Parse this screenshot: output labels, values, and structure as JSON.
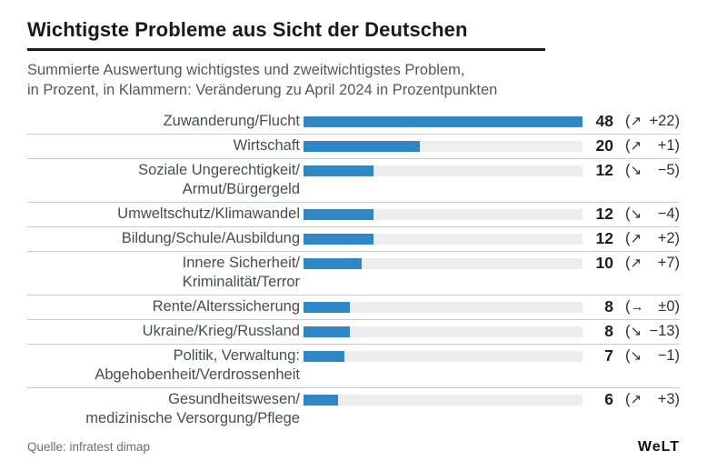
{
  "chart_data": {
    "type": "bar",
    "orientation": "horizontal",
    "title": "Wichtigste Probleme aus Sicht der Deutschen",
    "subtitle_line1": "Summierte Auswertung wichtigstes und zweitwichtigstes Problem,",
    "subtitle_line2": "in Prozent, in Klammern: Veränderung zu April 2024 in Prozentpunkten",
    "source": "Quelle: infratest dimap",
    "unit": "Prozent",
    "value_axis_max": 48,
    "grid": false,
    "legend": false,
    "bar_color": "#3087c6",
    "track_color": "#ededed",
    "categories": [
      "Zuwanderung/Flucht",
      "Wirtschaft",
      "Soziale Ungerechtigkeit/Armut/Bürgergeld",
      "Umweltschutz/Klimawandel",
      "Bildung/Schule/Ausbildung",
      "Innere Sicherheit/Kriminalität/Terror",
      "Rente/Alterssicherung",
      "Ukraine/Krieg/Russland",
      "Politik, Verwaltung: Abgehobenheit/Verdrossenheit",
      "Gesundheitswesen/medizinische Versorgung/Pflege"
    ],
    "values": [
      48,
      20,
      12,
      12,
      12,
      10,
      8,
      8,
      7,
      6
    ],
    "changes": [
      "+22",
      "+1",
      "−5",
      "−4",
      "+2",
      "+7",
      "±0",
      "−13",
      "−1",
      "+3"
    ],
    "trend_arrows": [
      "↗",
      "↗",
      "↘",
      "↘",
      "↗",
      "↗",
      "→",
      "↘",
      "↘",
      "↗"
    ],
    "rows": [
      {
        "label_lines": [
          "Zuwanderung/Flucht"
        ],
        "value": 48,
        "arrow": "↗",
        "change": "+22"
      },
      {
        "label_lines": [
          "Wirtschaft"
        ],
        "value": 20,
        "arrow": "↗",
        "change": "+1"
      },
      {
        "label_lines": [
          "Soziale Ungerechtigkeit/",
          "Armut/Bürgergeld"
        ],
        "value": 12,
        "arrow": "↘",
        "change": "−5"
      },
      {
        "label_lines": [
          "Umweltschutz/Klimawandel"
        ],
        "value": 12,
        "arrow": "↘",
        "change": "−4"
      },
      {
        "label_lines": [
          "Bildung/Schule/Ausbildung"
        ],
        "value": 12,
        "arrow": "↗",
        "change": "+2"
      },
      {
        "label_lines": [
          "Innere Sicherheit/",
          "Kriminalität/Terror"
        ],
        "value": 10,
        "arrow": "↗",
        "change": "+7"
      },
      {
        "label_lines": [
          "Rente/Alterssicherung"
        ],
        "value": 8,
        "arrow": "→",
        "change": "±0"
      },
      {
        "label_lines": [
          "Ukraine/Krieg/Russland"
        ],
        "value": 8,
        "arrow": "↘",
        "change": "−13"
      },
      {
        "label_lines": [
          "Politik, Verwaltung:",
          "Abgehobenheit/Verdrossenheit"
        ],
        "value": 7,
        "arrow": "↘",
        "change": "−1"
      },
      {
        "label_lines": [
          "Gesundheitswesen/",
          "medizinische Versorgung/Pflege"
        ],
        "value": 6,
        "arrow": "↗",
        "change": "+3"
      }
    ]
  },
  "footer": {
    "logo": "WeLT"
  }
}
